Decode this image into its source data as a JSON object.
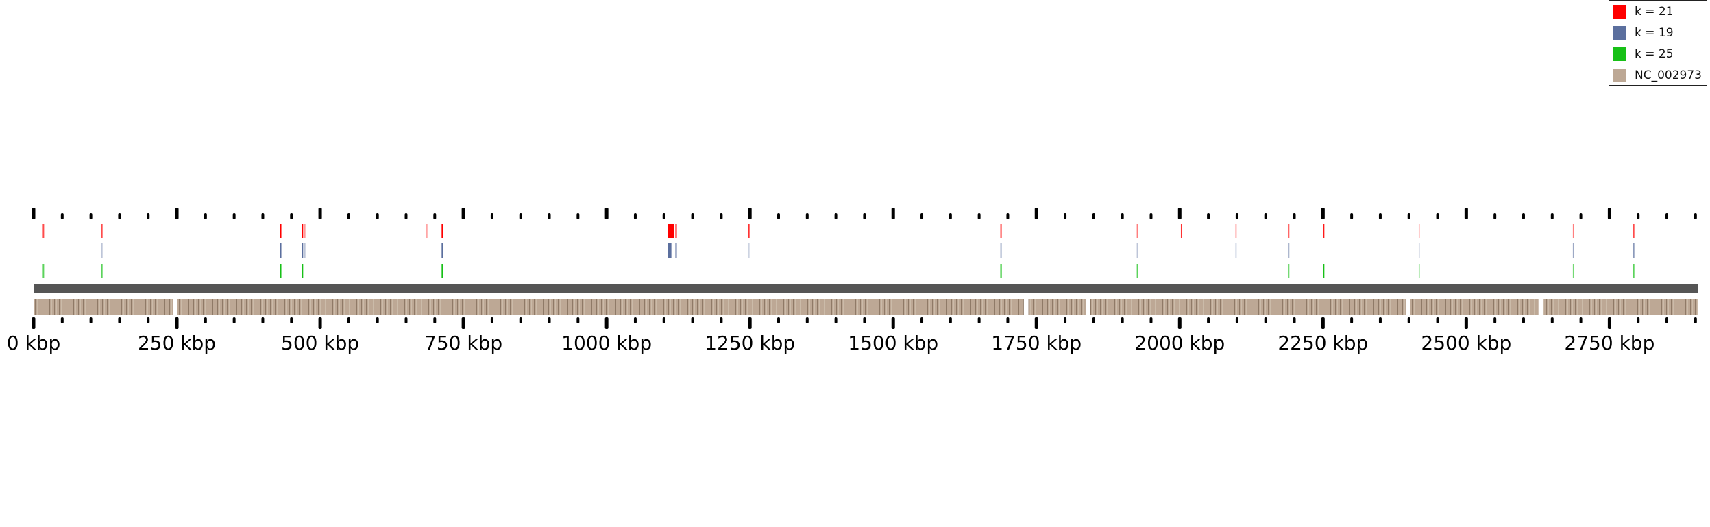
{
  "legend": {
    "items": [
      {
        "label": "k = 21",
        "color": "#ff0000"
      },
      {
        "label": "k = 19",
        "color": "#5b6f9e"
      },
      {
        "label": "k = 25",
        "color": "#17c017"
      },
      {
        "label": "NC_002973",
        "color": "#bda895"
      }
    ]
  },
  "axis": {
    "max_kbp": 2905,
    "labels": [
      "0 kbp",
      "250 kbp",
      "500 kbp",
      "750 kbp",
      "1000 kbp",
      "1250 kbp",
      "1500 kbp",
      "1750 kbp",
      "2000 kbp",
      "2250 kbp",
      "2500 kbp",
      "2750 kbp"
    ],
    "label_values_kbp": [
      0,
      250,
      500,
      750,
      1000,
      1250,
      1500,
      1750,
      2000,
      2250,
      2500,
      2750
    ],
    "minor_tick_step_kbp": 50,
    "major_tick_step_kbp": 250
  },
  "genome": {
    "name": "NC_002973",
    "length_kbp": 2905,
    "contig_gaps_kbp": [
      [
        243,
        250
      ],
      [
        1728,
        1736
      ],
      [
        1836,
        1843
      ],
      [
        2395,
        2402
      ],
      [
        2626,
        2634
      ]
    ]
  },
  "tracks": [
    {
      "name": "k = 21",
      "color": "#ff0000",
      "marks_kbp": [
        [
          16,
          17,
          0.7
        ],
        [
          118,
          119,
          0.7
        ],
        [
          430,
          432,
          1
        ],
        [
          468,
          470,
          1
        ],
        [
          472,
          473,
          0.4
        ],
        [
          685,
          686,
          0.35
        ],
        [
          712,
          714,
          1
        ],
        [
          1107,
          1118,
          1
        ],
        [
          1120,
          1122,
          1
        ],
        [
          1247,
          1249,
          0.8
        ],
        [
          1687,
          1689,
          0.8
        ],
        [
          1925,
          1926,
          0.5
        ],
        [
          2002,
          2004,
          0.8
        ],
        [
          2097,
          2098,
          0.35
        ],
        [
          2189,
          2190,
          0.6
        ],
        [
          2250,
          2252,
          0.9
        ],
        [
          2417,
          2418,
          0.2
        ],
        [
          2686,
          2687,
          0.5
        ],
        [
          2791,
          2793,
          0.7
        ]
      ]
    },
    {
      "name": "k = 19",
      "color": "#5b6f9e",
      "marks_kbp": [
        [
          118,
          119,
          0.4
        ],
        [
          430,
          432,
          1
        ],
        [
          468,
          470,
          1
        ],
        [
          472,
          473,
          0.4
        ],
        [
          712,
          714,
          1
        ],
        [
          1107,
          1113,
          1
        ],
        [
          1120,
          1122,
          1
        ],
        [
          1247,
          1248,
          0.3
        ],
        [
          1687,
          1689,
          0.6
        ],
        [
          1925,
          1926,
          0.4
        ],
        [
          2097,
          2098,
          0.3
        ],
        [
          2189,
          2190,
          0.5
        ],
        [
          2417,
          2418,
          0.2
        ],
        [
          2686,
          2687,
          0.6
        ],
        [
          2791,
          2793,
          0.7
        ]
      ]
    },
    {
      "name": "k = 25",
      "color": "#17c017",
      "marks_kbp": [
        [
          16,
          17,
          0.7
        ],
        [
          118,
          119,
          0.7
        ],
        [
          430,
          432,
          1
        ],
        [
          468,
          470,
          1
        ],
        [
          712,
          714,
          1
        ],
        [
          1687,
          1689,
          1
        ],
        [
          1925,
          1926,
          0.7
        ],
        [
          2189,
          2190,
          0.6
        ],
        [
          2250,
          2252,
          1
        ],
        [
          2417,
          2418,
          0.3
        ],
        [
          2686,
          2687,
          0.6
        ],
        [
          2791,
          2793,
          0.7
        ]
      ]
    }
  ]
}
